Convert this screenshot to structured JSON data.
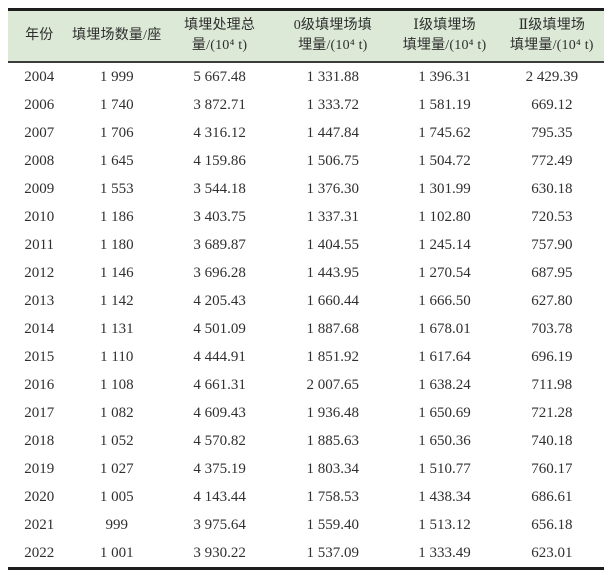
{
  "table": {
    "title": "landfill-statistics-table",
    "columns": [
      {
        "key": "year",
        "lines": [
          "年份"
        ]
      },
      {
        "key": "landfill_count",
        "lines": [
          "填埋场数量/座"
        ]
      },
      {
        "key": "total_amount",
        "lines": [
          "填埋处理总",
          "量/(10⁴ t)"
        ]
      },
      {
        "key": "level0_amount",
        "lines": [
          "0级填埋场填",
          "埋量/(10⁴ t)"
        ]
      },
      {
        "key": "level1_amount",
        "lines": [
          "Ⅰ级填埋场",
          "填埋量/(10⁴ t)"
        ]
      },
      {
        "key": "level2_amount",
        "lines": [
          "Ⅱ级填埋场",
          "填埋量/(10⁴ t)"
        ]
      }
    ],
    "rows": [
      [
        "2004",
        "1 999",
        "5 667.48",
        "1 331.88",
        "1 396.31",
        "2 429.39"
      ],
      [
        "2006",
        "1 740",
        "3 872.71",
        "1 333.72",
        "1 581.19",
        "669.12"
      ],
      [
        "2007",
        "1 706",
        "4 316.12",
        "1 447.84",
        "1 745.62",
        "795.35"
      ],
      [
        "2008",
        "1 645",
        "4 159.86",
        "1 506.75",
        "1 504.72",
        "772.49"
      ],
      [
        "2009",
        "1 553",
        "3 544.18",
        "1 376.30",
        "1 301.99",
        "630.18"
      ],
      [
        "2010",
        "1 186",
        "3 403.75",
        "1 337.31",
        "1 102.80",
        "720.53"
      ],
      [
        "2011",
        "1 180",
        "3 689.87",
        "1 404.55",
        "1 245.14",
        "757.90"
      ],
      [
        "2012",
        "1 146",
        "3 696.28",
        "1 443.95",
        "1 270.54",
        "687.95"
      ],
      [
        "2013",
        "1 142",
        "4 205.43",
        "1 660.44",
        "1 666.50",
        "627.80"
      ],
      [
        "2014",
        "1 131",
        "4 501.09",
        "1 887.68",
        "1 678.01",
        "703.78"
      ],
      [
        "2015",
        "1 110",
        "4 444.91",
        "1 851.92",
        "1 617.64",
        "696.19"
      ],
      [
        "2016",
        "1 108",
        "4 661.31",
        "2 007.65",
        "1 638.24",
        "711.98"
      ],
      [
        "2017",
        "1 082",
        "4 609.43",
        "1 936.48",
        "1 650.69",
        "721.28"
      ],
      [
        "2018",
        "1 052",
        "4 570.82",
        "1 885.63",
        "1 650.36",
        "740.18"
      ],
      [
        "2019",
        "1 027",
        "4 375.19",
        "1 803.34",
        "1 510.77",
        "760.17"
      ],
      [
        "2020",
        "1 005",
        "4 143.44",
        "1 758.53",
        "1 438.34",
        "686.61"
      ],
      [
        "2021",
        "999",
        "3 975.64",
        "1 559.40",
        "1 513.12",
        "656.18"
      ],
      [
        "2022",
        "1 001",
        "3 930.22",
        "1 537.09",
        "1 333.49",
        "623.01"
      ]
    ]
  },
  "colors": {
    "header_bg": "#dce9d7",
    "rule_dark": "#1c1c1c",
    "rule_mid": "#3c3c3c",
    "text": "#2f2f2f"
  }
}
